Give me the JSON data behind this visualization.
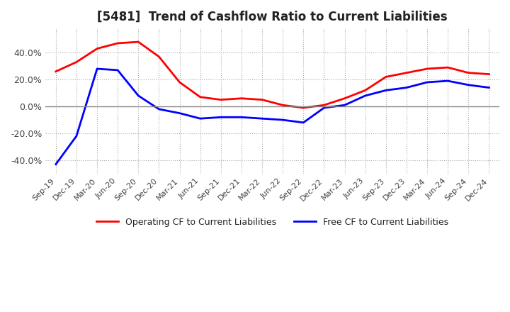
{
  "title": "[5481]  Trend of Cashflow Ratio to Current Liabilities",
  "x_labels": [
    "Sep-19",
    "Dec-19",
    "Mar-20",
    "Jun-20",
    "Sep-20",
    "Dec-20",
    "Mar-21",
    "Jun-21",
    "Sep-21",
    "Dec-21",
    "Mar-22",
    "Jun-22",
    "Sep-22",
    "Dec-22",
    "Mar-23",
    "Jun-23",
    "Sep-23",
    "Dec-23",
    "Mar-24",
    "Jun-24",
    "Sep-24",
    "Dec-24"
  ],
  "operating_cf": [
    0.26,
    0.33,
    0.43,
    0.47,
    0.48,
    0.37,
    0.18,
    0.07,
    0.05,
    0.06,
    0.05,
    0.01,
    -0.01,
    0.01,
    0.06,
    0.12,
    0.22,
    0.25,
    0.28,
    0.29,
    0.25,
    0.24
  ],
  "free_cf": [
    -0.43,
    -0.22,
    0.28,
    0.27,
    0.08,
    -0.02,
    -0.05,
    -0.09,
    -0.08,
    -0.08,
    -0.09,
    -0.1,
    -0.12,
    -0.01,
    0.01,
    0.08,
    0.12,
    0.14,
    0.18,
    0.19,
    0.16,
    0.14
  ],
  "operating_color": "#ff0000",
  "free_color": "#0000ff",
  "ylim": [
    -0.5,
    0.58
  ],
  "yticks": [
    -0.4,
    -0.2,
    0.0,
    0.2,
    0.4
  ],
  "ytick_labels": [
    "-40.0%",
    "-20.0%",
    "0.0%",
    "20.0%",
    "40.0%"
  ],
  "legend_operating": "Operating CF to Current Liabilities",
  "legend_free": "Free CF to Current Liabilities",
  "background_color": "#ffffff",
  "grid_color": "#aaaaaa"
}
